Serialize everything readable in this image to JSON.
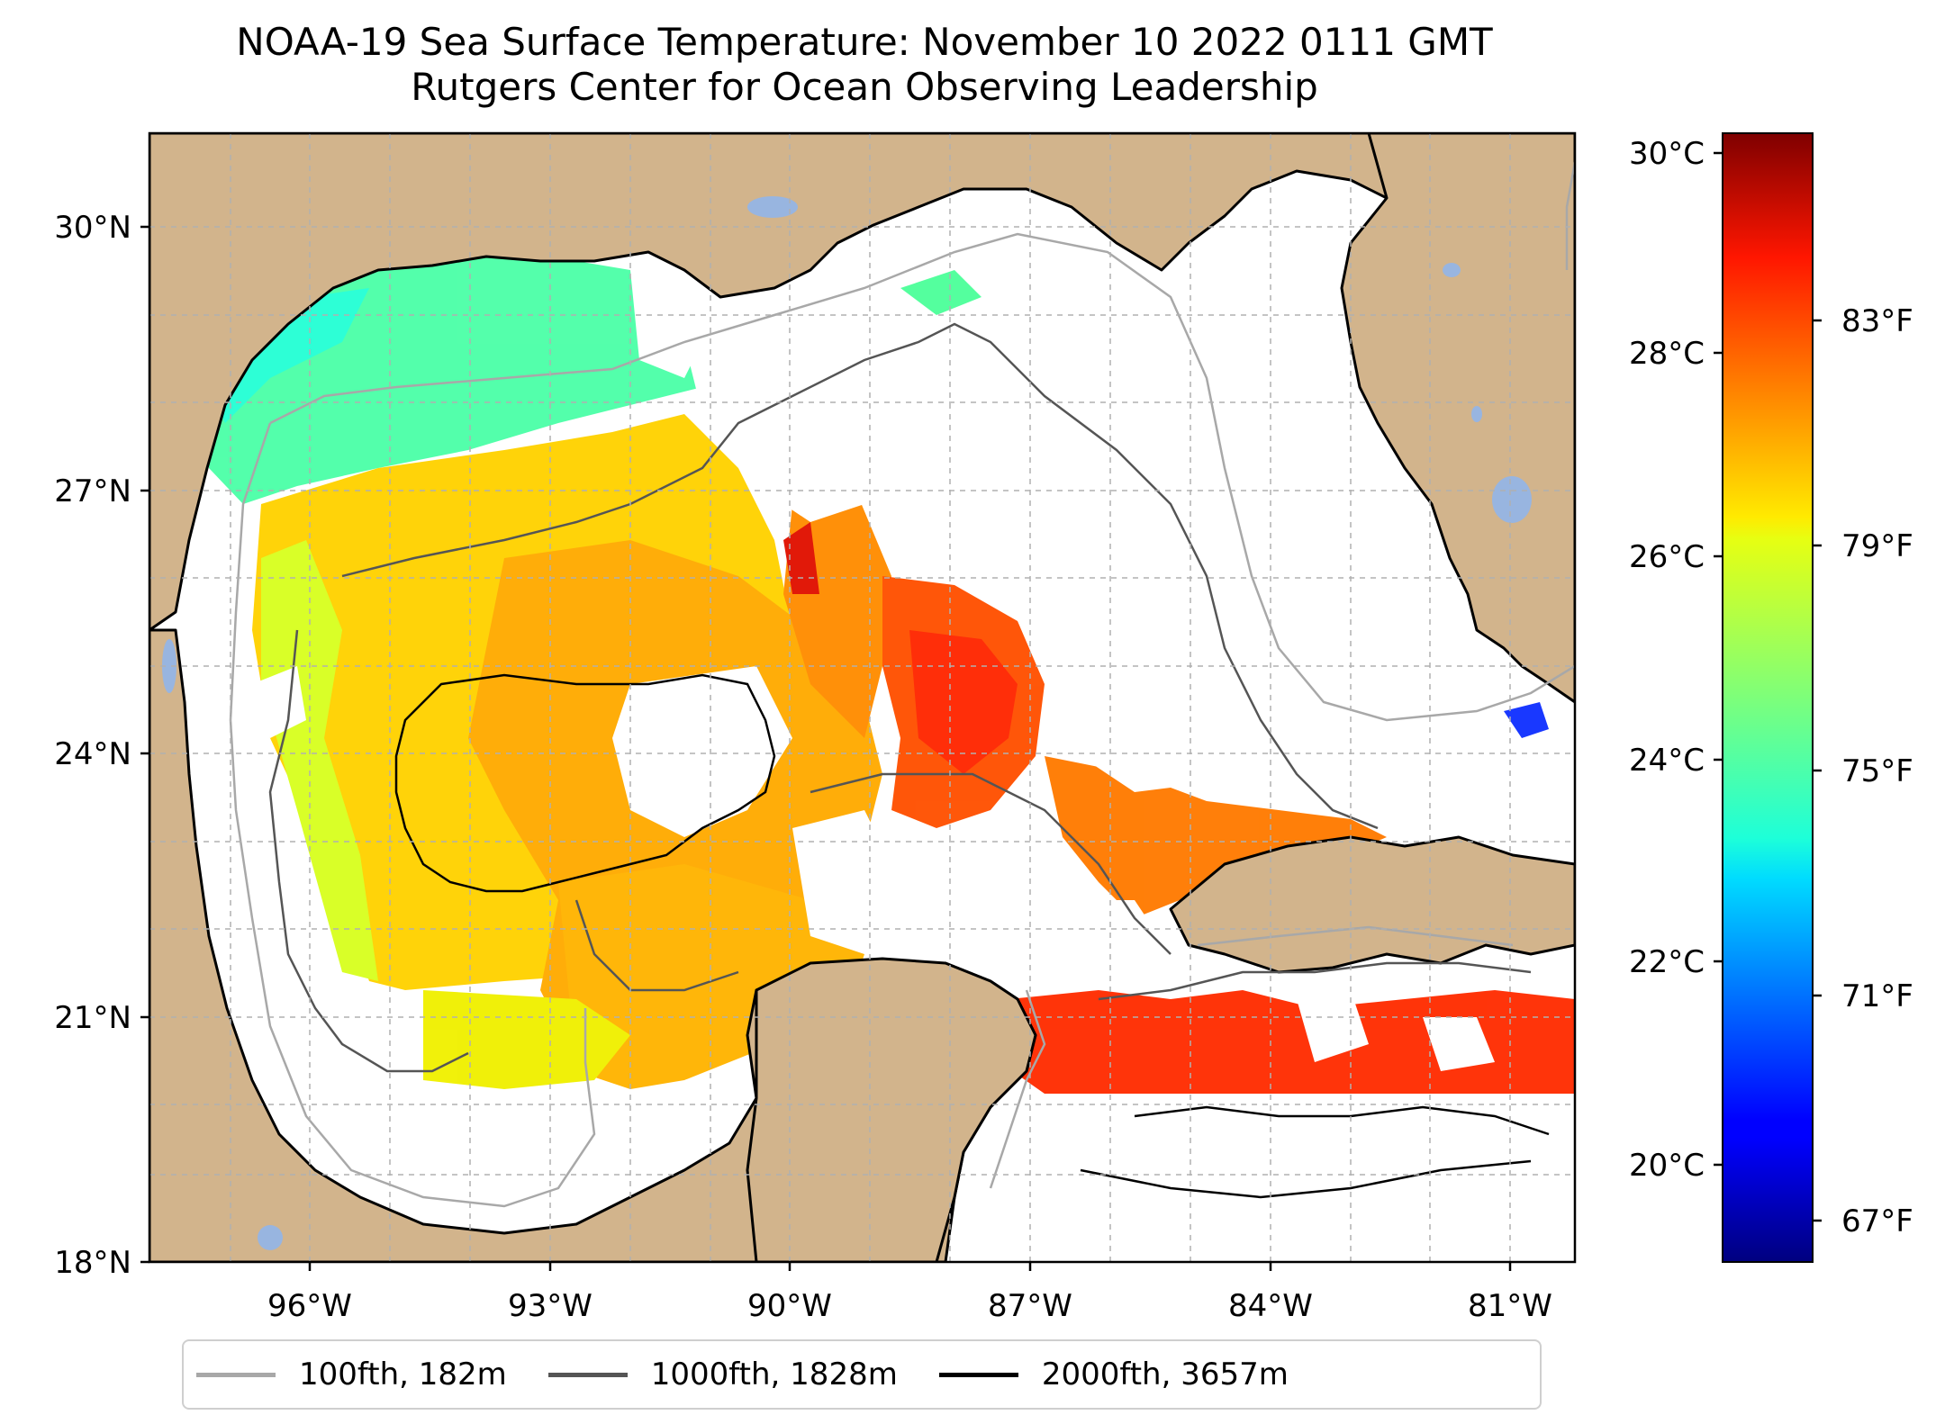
{
  "title": {
    "line1": "NOAA-19 Sea Surface Temperature: November 10 2022 0111 GMT",
    "line2": "Rutgers Center for Ocean Observing Leadership"
  },
  "map": {
    "projection": "plate-carree",
    "lon_range": [
      -98.0,
      -80.3
    ],
    "lat_range": [
      18.0,
      31.0
    ],
    "lon_ticks": [
      "96°W",
      "93°W",
      "90°W",
      "87°W",
      "84°W",
      "81°W"
    ],
    "lat_ticks": [
      "18°N",
      "21°N",
      "24°N",
      "27°N",
      "30°N"
    ],
    "gridlines": true,
    "land_color": "#d2b48c",
    "lake_color": "#98b5e0",
    "ocean_color": "#ffffff"
  },
  "colorbar": {
    "colormap": "jet",
    "range_c": [
      19.0,
      30.1
    ],
    "celsius_labels": [
      "30°C",
      "28°C",
      "26°C",
      "24°C",
      "22°C",
      "20°C"
    ],
    "fahrenheit_labels": [
      "83°F",
      "79°F",
      "75°F",
      "71°F",
      "67°F"
    ]
  },
  "legend": {
    "placement": "bottom-center",
    "items": [
      {
        "label": "100fth, 182m",
        "color": "#a8a8a8"
      },
      {
        "label": "1000fth, 1828m",
        "color": "#555555"
      },
      {
        "label": "2000fth, 3657m",
        "color": "#000000"
      }
    ]
  }
}
